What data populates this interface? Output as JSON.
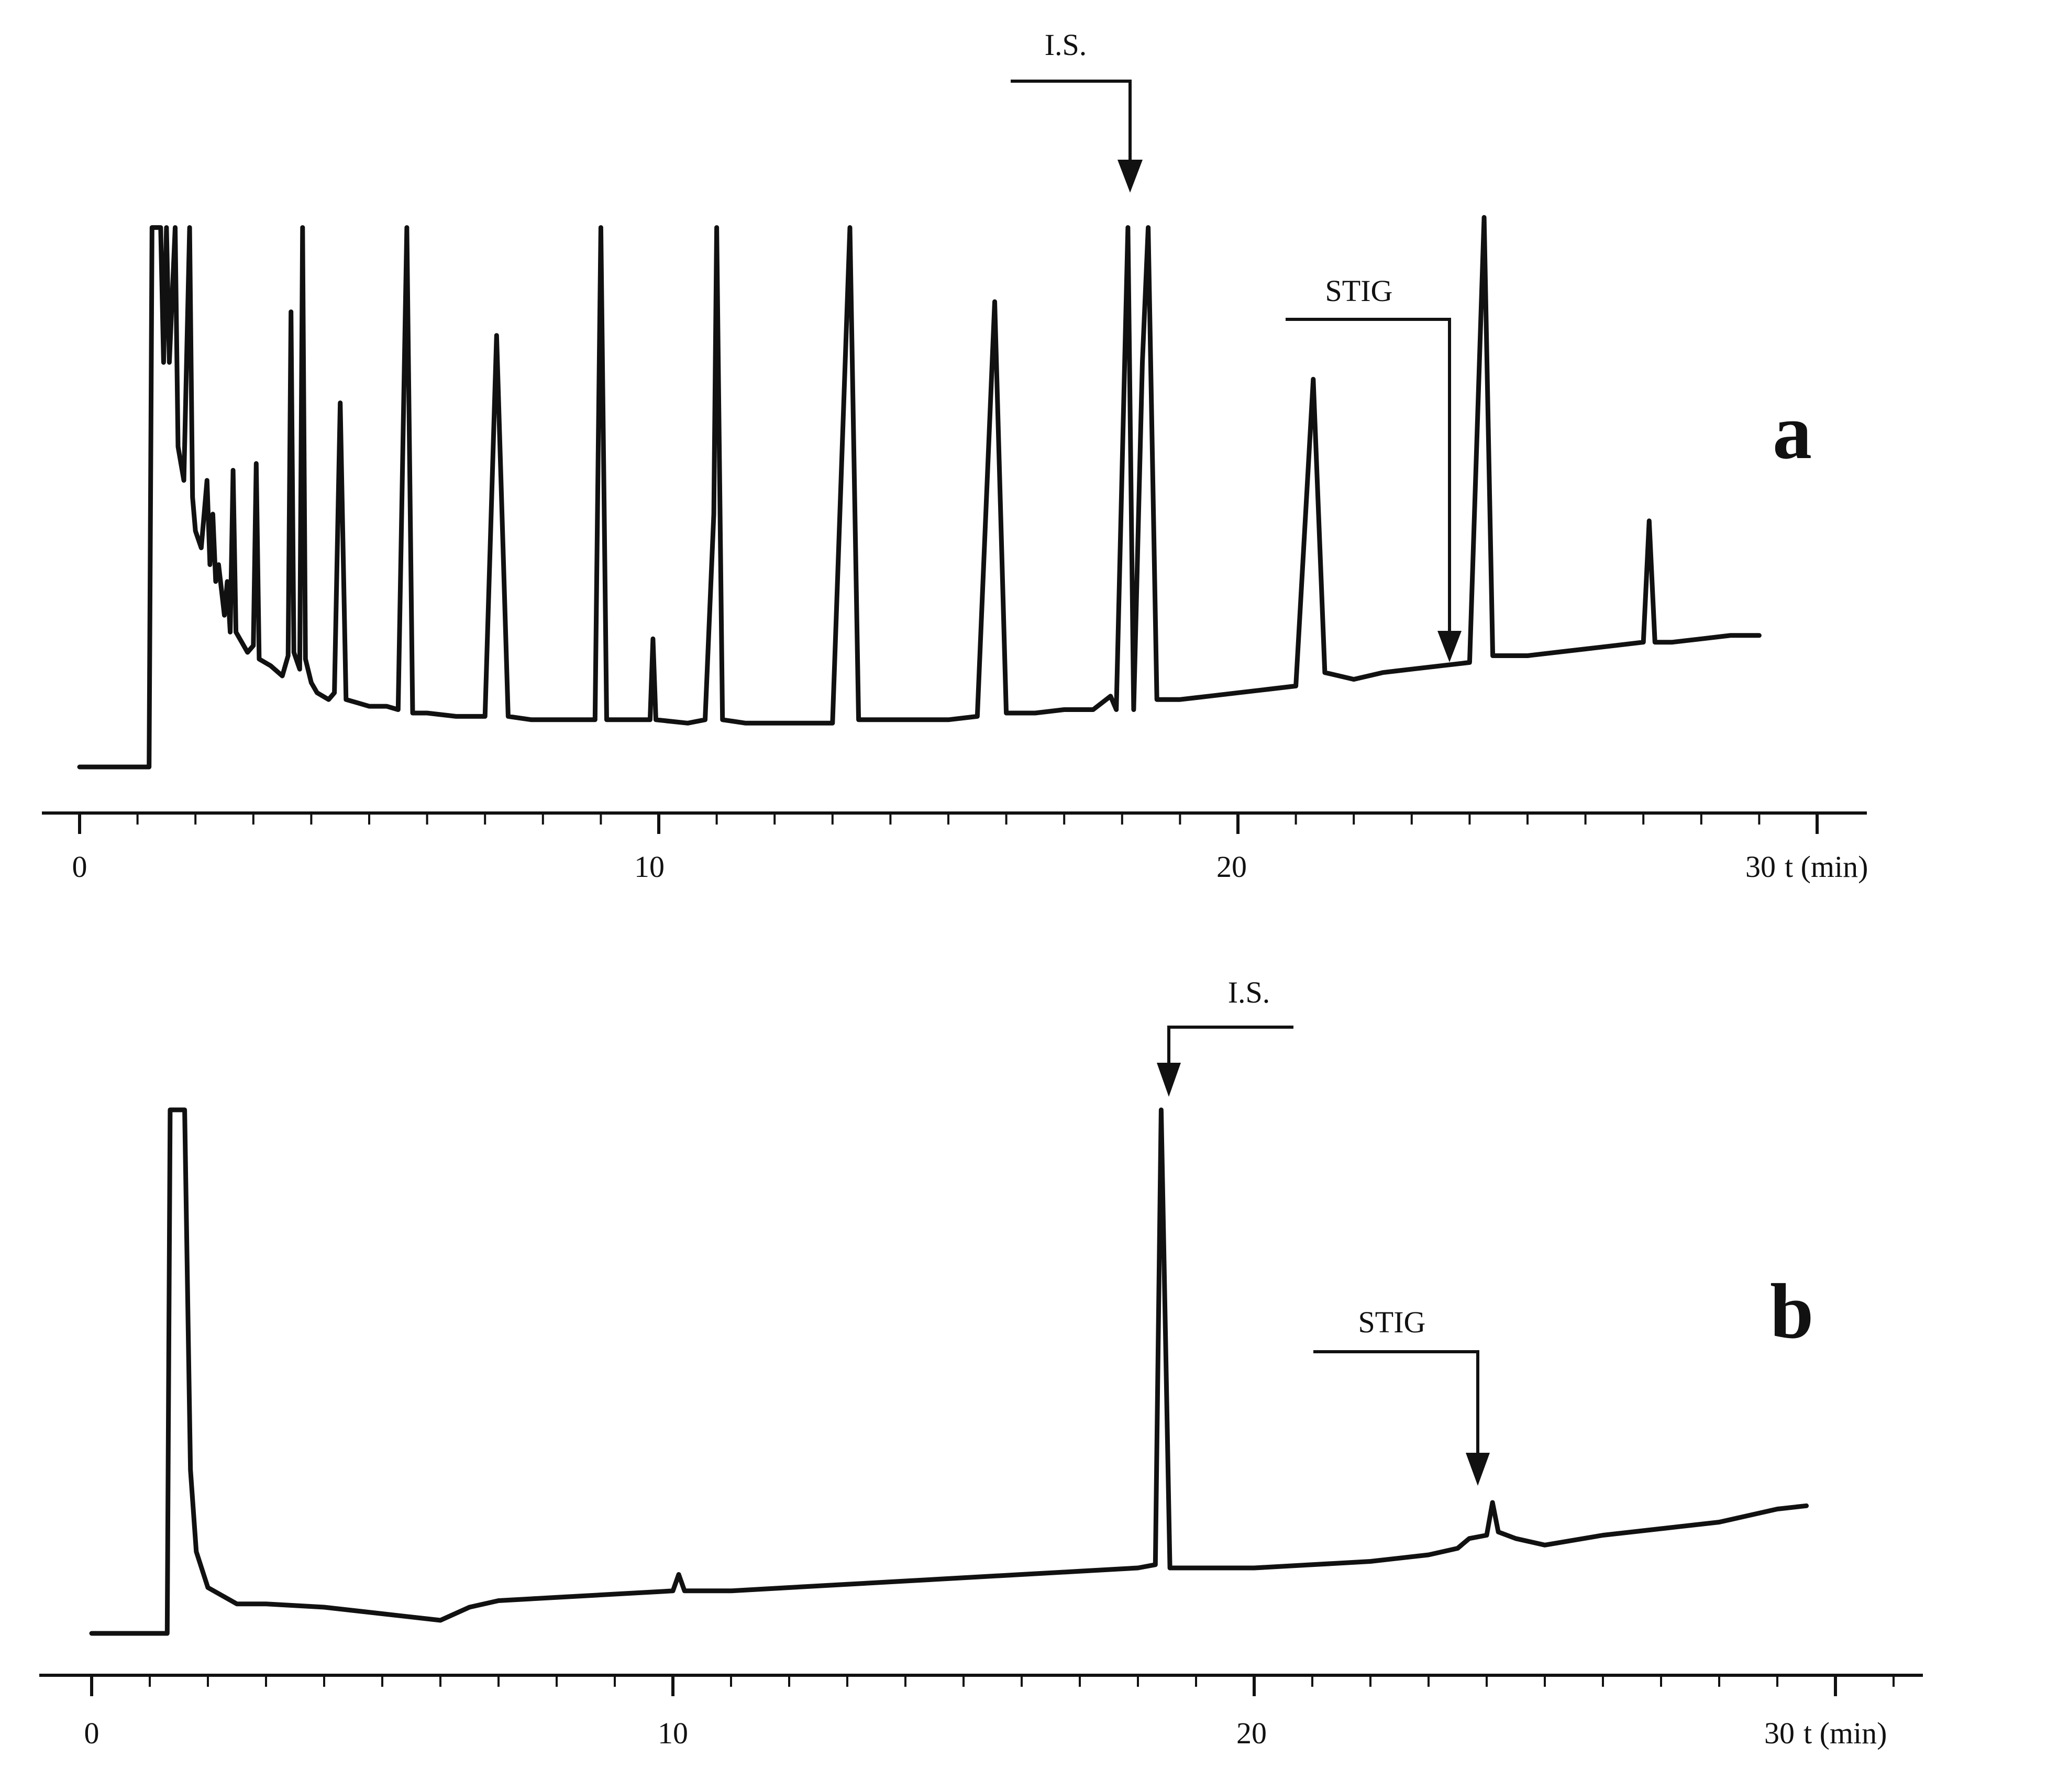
{
  "chart_data": [
    {
      "panel": "a",
      "type": "line",
      "panel_label": "a",
      "xlabel": "t (min)",
      "xlim": [
        0,
        30
      ],
      "x_ticks": [
        {
          "value": 0,
          "label": "0"
        },
        {
          "value": 10,
          "label": "10"
        },
        {
          "value": 20,
          "label": "20"
        },
        {
          "value": 30,
          "label": "30"
        }
      ],
      "annotations": [
        {
          "label": "I.S.",
          "x": 18.1,
          "y": 16
        },
        {
          "label": "STIG",
          "x": 23.7,
          "y": 3
        }
      ],
      "series": [
        {
          "points": [
            [
              0,
              0
            ],
            [
              1.2,
              0
            ],
            [
              1.25,
              16
            ],
            [
              1.4,
              16
            ],
            [
              1.45,
              12
            ],
            [
              1.5,
              16
            ],
            [
              1.55,
              12
            ],
            [
              1.65,
              16
            ],
            [
              1.7,
              9.5
            ],
            [
              1.8,
              8.5
            ],
            [
              1.9,
              16
            ],
            [
              1.95,
              8
            ],
            [
              2.0,
              7
            ],
            [
              2.1,
              6.5
            ],
            [
              2.2,
              8.5
            ],
            [
              2.25,
              6
            ],
            [
              2.3,
              7.5
            ],
            [
              2.35,
              5.5
            ],
            [
              2.4,
              6
            ],
            [
              2.5,
              4.5
            ],
            [
              2.55,
              5.5
            ],
            [
              2.6,
              4
            ],
            [
              2.65,
              8.8
            ],
            [
              2.7,
              4
            ],
            [
              2.8,
              3.7
            ],
            [
              2.9,
              3.4
            ],
            [
              3.0,
              3.6
            ],
            [
              3.05,
              9
            ],
            [
              3.1,
              3.2
            ],
            [
              3.3,
              3
            ],
            [
              3.5,
              2.7
            ],
            [
              3.6,
              3.3
            ],
            [
              3.65,
              13.5
            ],
            [
              3.7,
              3.4
            ],
            [
              3.8,
              2.9
            ],
            [
              3.85,
              16
            ],
            [
              3.9,
              3.2
            ],
            [
              4.0,
              2.5
            ],
            [
              4.1,
              2.2
            ],
            [
              4.3,
              2
            ],
            [
              4.4,
              2.2
            ],
            [
              4.5,
              10.8
            ],
            [
              4.6,
              2
            ],
            [
              4.8,
              1.9
            ],
            [
              5.0,
              1.8
            ],
            [
              5.3,
              1.8
            ],
            [
              5.5,
              1.7
            ],
            [
              5.65,
              16
            ],
            [
              5.75,
              1.6
            ],
            [
              6.0,
              1.6
            ],
            [
              6.5,
              1.5
            ],
            [
              7.0,
              1.5
            ],
            [
              7.2,
              12.8
            ],
            [
              7.4,
              1.5
            ],
            [
              7.8,
              1.4
            ],
            [
              8.5,
              1.4
            ],
            [
              8.9,
              1.4
            ],
            [
              9.0,
              16
            ],
            [
              9.1,
              1.4
            ],
            [
              9.5,
              1.4
            ],
            [
              9.85,
              1.4
            ],
            [
              9.9,
              3.8
            ],
            [
              9.95,
              1.4
            ],
            [
              10.5,
              1.3
            ],
            [
              10.8,
              1.4
            ],
            [
              10.95,
              7.5
            ],
            [
              11.0,
              16
            ],
            [
              11.1,
              1.4
            ],
            [
              11.5,
              1.3
            ],
            [
              12.0,
              1.3
            ],
            [
              12.5,
              1.3
            ],
            [
              13.0,
              1.3
            ],
            [
              13.3,
              16
            ],
            [
              13.45,
              1.4
            ],
            [
              14.0,
              1.4
            ],
            [
              14.5,
              1.4
            ],
            [
              15.0,
              1.4
            ],
            [
              15.5,
              1.5
            ],
            [
              15.8,
              13.8
            ],
            [
              16.0,
              1.6
            ],
            [
              16.5,
              1.6
            ],
            [
              17.0,
              1.7
            ],
            [
              17.5,
              1.7
            ],
            [
              17.8,
              2.1
            ],
            [
              17.9,
              1.7
            ],
            [
              18.1,
              16
            ],
            [
              18.2,
              1.7
            ],
            [
              18.35,
              12
            ],
            [
              18.45,
              16
            ],
            [
              18.6,
              2
            ],
            [
              19.0,
              2
            ],
            [
              19.5,
              2.1
            ],
            [
              20.0,
              2.2
            ],
            [
              20.5,
              2.3
            ],
            [
              21.0,
              2.4
            ],
            [
              21.3,
              11.5
            ],
            [
              21.5,
              2.8
            ],
            [
              22.0,
              2.6
            ],
            [
              22.5,
              2.8
            ],
            [
              23.0,
              2.9
            ],
            [
              23.5,
              3
            ],
            [
              24.0,
              3.1
            ],
            [
              24.25,
              16.3
            ],
            [
              24.4,
              3.3
            ],
            [
              25.0,
              3.3
            ],
            [
              25.5,
              3.4
            ],
            [
              26.0,
              3.5
            ],
            [
              26.5,
              3.6
            ],
            [
              27.0,
              3.7
            ],
            [
              27.1,
              7.3
            ],
            [
              27.2,
              3.7
            ],
            [
              27.5,
              3.7
            ],
            [
              28.0,
              3.8
            ],
            [
              28.5,
              3.9
            ],
            [
              29.0,
              3.9
            ]
          ]
        }
      ]
    },
    {
      "panel": "b",
      "type": "line",
      "panel_label": "b",
      "xlabel": "t (min)",
      "xlim": [
        0,
        30
      ],
      "x_ticks": [
        {
          "value": 0,
          "label": "0"
        },
        {
          "value": 10,
          "label": "10"
        },
        {
          "value": 20,
          "label": "20"
        },
        {
          "value": 30,
          "label": "30"
        }
      ],
      "annotations": [
        {
          "label": "I.S.",
          "x": 18.4,
          "y": 16
        },
        {
          "label": "STIG",
          "x": 24.1,
          "y": 4
        }
      ],
      "series": [
        {
          "points": [
            [
              0,
              0
            ],
            [
              1.3,
              0
            ],
            [
              1.35,
              16
            ],
            [
              1.6,
              16
            ],
            [
              1.7,
              5
            ],
            [
              1.8,
              2.5
            ],
            [
              2.0,
              1.4
            ],
            [
              2.5,
              0.9
            ],
            [
              3.0,
              0.9
            ],
            [
              4.0,
              0.8
            ],
            [
              5.0,
              0.6
            ],
            [
              6.0,
              0.4
            ],
            [
              6.5,
              0.8
            ],
            [
              7.0,
              1.0
            ],
            [
              8.0,
              1.1
            ],
            [
              9.0,
              1.2
            ],
            [
              10.0,
              1.3
            ],
            [
              10.1,
              1.8
            ],
            [
              10.2,
              1.3
            ],
            [
              11.0,
              1.3
            ],
            [
              12.0,
              1.4
            ],
            [
              13.0,
              1.5
            ],
            [
              14.0,
              1.6
            ],
            [
              15.0,
              1.7
            ],
            [
              16.0,
              1.8
            ],
            [
              17.0,
              1.9
            ],
            [
              18.0,
              2.0
            ],
            [
              18.3,
              2.1
            ],
            [
              18.4,
              16
            ],
            [
              18.55,
              2.0
            ],
            [
              19.0,
              2.0
            ],
            [
              20.0,
              2.0
            ],
            [
              21.0,
              2.1
            ],
            [
              22.0,
              2.2
            ],
            [
              23.0,
              2.4
            ],
            [
              23.5,
              2.6
            ],
            [
              23.7,
              2.9
            ],
            [
              24.0,
              3.0
            ],
            [
              24.1,
              4.0
            ],
            [
              24.2,
              3.1
            ],
            [
              24.5,
              2.9
            ],
            [
              25.0,
              2.7
            ],
            [
              26.0,
              3.0
            ],
            [
              27.0,
              3.2
            ],
            [
              28.0,
              3.4
            ],
            [
              28.5,
              3.6
            ],
            [
              29.0,
              3.8
            ],
            [
              29.5,
              3.9
            ]
          ]
        }
      ]
    }
  ]
}
